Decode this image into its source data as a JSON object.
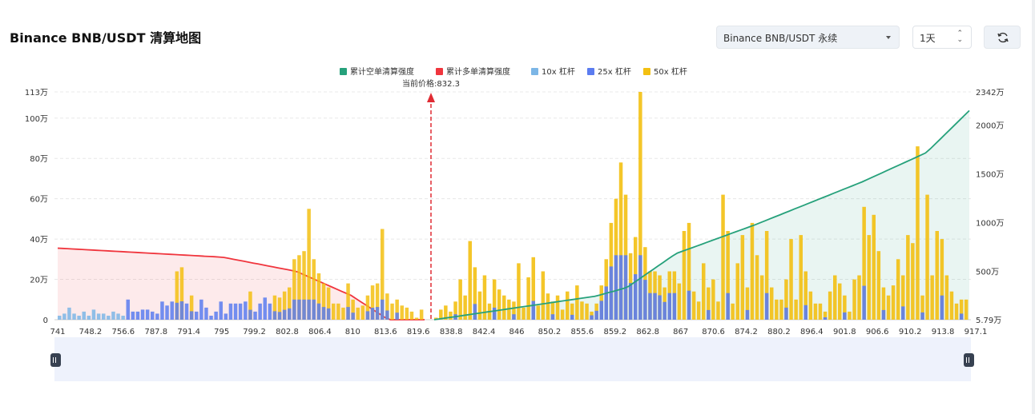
{
  "header": {
    "title": "Binance BNB/USDT 清算地图",
    "pair_select": "Binance BNB/USDT 永续",
    "interval_select": "1天",
    "refresh_icon": "refresh-icon"
  },
  "colors": {
    "cum_short": "#26a17b",
    "cum_long": "#f0353d",
    "lev10": "#7cb6e6",
    "lev25": "#5b7cf0",
    "lev50": "#f3c012",
    "grid": "#e8e8e8",
    "slider": "#eef2fc"
  },
  "chart_data": {
    "type": "bar",
    "legend": [
      "累计空单清算强度",
      "累计多单清算强度",
      "10x 杠杆",
      "25x 杠杆",
      "50x 杠杆"
    ],
    "current_price_label": "当前价格:832.3",
    "current_price": 832.3,
    "y_left_ticks": [
      "0",
      "20万",
      "40万",
      "60万",
      "80万",
      "100万",
      "113万"
    ],
    "y_left_values": [
      0,
      20,
      40,
      60,
      80,
      100,
      113
    ],
    "y_right_ticks": [
      "5.79万",
      "500万",
      "1000万",
      "1500万",
      "2000万",
      "2342万"
    ],
    "y_right_values": [
      5.79,
      500,
      1000,
      1500,
      2000,
      2342
    ],
    "x_ticks": [
      "741",
      "748.2",
      "756.6",
      "787.8",
      "791.4",
      "795",
      "799.2",
      "802.8",
      "806.4",
      "810",
      "813.6",
      "819.6",
      "838.8",
      "842.4",
      "846",
      "850.2",
      "855.6",
      "859.2",
      "862.8",
      "867",
      "870.6",
      "874.2",
      "880.2",
      "896.4",
      "901.8",
      "906.6",
      "910.2",
      "913.8",
      "917.1"
    ],
    "bars_left": [
      2,
      3,
      6,
      3,
      2,
      4,
      2,
      5,
      3,
      3,
      2,
      4,
      3,
      2,
      10,
      4,
      4,
      5,
      5,
      4,
      3,
      9,
      7,
      9,
      24,
      26,
      8,
      12,
      4,
      10,
      6,
      2,
      4,
      9,
      3,
      8,
      8,
      8,
      9,
      14,
      4,
      8,
      11,
      8,
      12,
      11,
      14,
      16,
      30,
      32,
      34,
      55,
      30,
      23,
      18,
      16,
      8,
      8,
      6,
      18,
      10,
      6,
      7,
      12,
      17,
      18,
      45,
      13,
      8,
      10,
      7,
      6,
      4,
      1,
      5
    ],
    "bars_right": [
      1,
      5,
      7,
      4,
      9,
      20,
      12,
      39,
      26,
      14,
      22,
      8,
      20,
      15,
      12,
      10,
      9,
      28,
      6,
      21,
      31,
      7,
      24,
      13,
      9,
      12,
      5,
      14,
      8,
      17,
      9,
      8,
      4,
      8,
      17,
      30,
      48,
      60,
      78,
      62,
      33,
      41,
      113,
      36,
      24,
      24,
      22,
      16,
      24,
      24,
      18,
      44,
      48,
      14,
      9,
      28,
      16,
      20,
      9,
      62,
      44,
      8,
      28,
      42,
      16,
      48,
      32,
      22,
      44,
      16,
      10,
      10,
      20,
      40,
      10,
      42,
      24,
      14,
      8,
      8,
      4,
      14,
      22,
      18,
      12,
      4,
      20,
      22,
      56,
      42,
      52,
      34,
      16,
      12,
      17,
      30,
      22,
      42,
      38,
      86,
      12,
      62,
      22,
      44,
      40,
      22,
      14,
      8,
      10,
      10
    ],
    "cum_long_start": 35.5,
    "cum_short_end": 2150
  }
}
